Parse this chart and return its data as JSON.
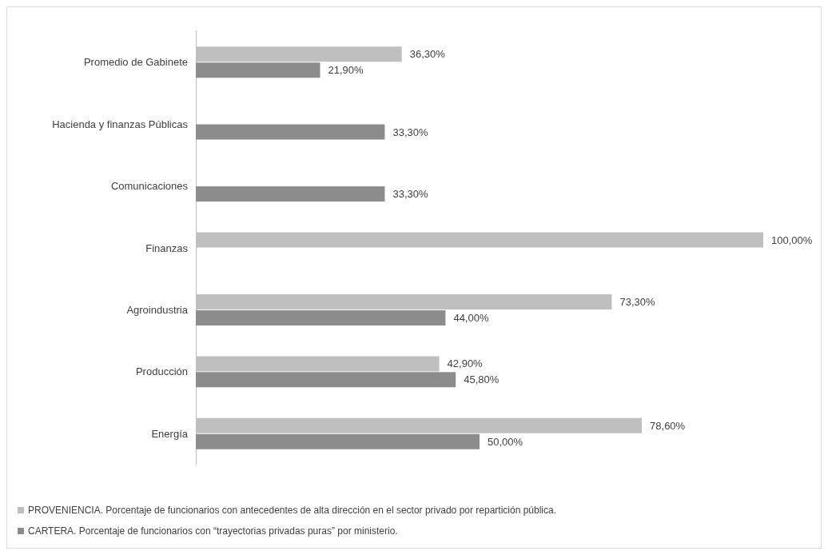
{
  "chart_data": {
    "type": "bar",
    "orientation": "horizontal",
    "categories": [
      "Promedio de Gabinete",
      "Hacienda y finanzas Públicas",
      "Comunicaciones",
      "Finanzas",
      "Agroindustria",
      "Producción",
      "Energía"
    ],
    "series": [
      {
        "name": "PROVENIENCIA. Porcentaje de funcionarios con antecedentes de alta dirección en el sector privado por repartición pública.",
        "color": "#bfbfbf",
        "values": [
          36.3,
          null,
          null,
          100,
          73.3,
          42.9,
          78.6
        ],
        "value_labels": [
          "36,30%",
          null,
          null,
          "100,00%",
          "73,30%",
          "42,90%",
          "78,60%"
        ]
      },
      {
        "name": "CARTERA. Porcentaje de funcionarios con “trayectorias privadas puras” por ministerio.",
        "color": "#8c8c8c",
        "values": [
          21.9,
          33.3,
          33.3,
          null,
          44.0,
          45.8,
          50.0
        ],
        "value_labels": [
          "21,90%",
          "33,30%",
          "33,30%",
          null,
          "44,00%",
          "45,80%",
          "50,00%"
        ]
      }
    ],
    "xlim": [
      0,
      100
    ],
    "tick_labels": "y",
    "grid": false,
    "legend": "bottom left"
  }
}
